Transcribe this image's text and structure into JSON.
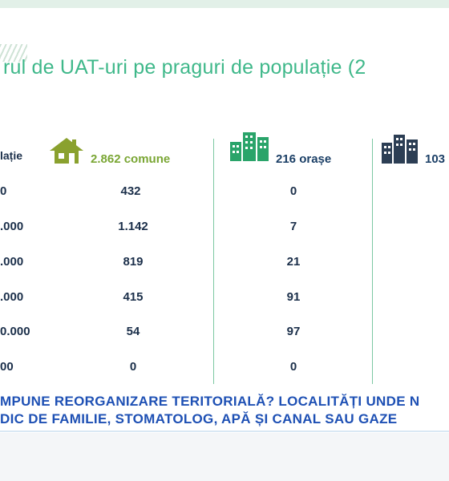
{
  "title": "rul de UAT-uri pe praguri de populație (2",
  "headers": {
    "col0": "lație",
    "col1": "2.862 comune",
    "col2": "216 orașe",
    "col3": "103"
  },
  "rows": [
    {
      "label": "0",
      "c1": "432",
      "c2": "0"
    },
    {
      "label": ".000",
      "c1": "1.142",
      "c2": "7"
    },
    {
      "label": ".000",
      "c1": "819",
      "c2": "21"
    },
    {
      "label": ".000",
      "c1": "415",
      "c2": "91"
    },
    {
      "label": "0.000",
      "c1": "54",
      "c2": "97"
    },
    {
      "label": "00",
      "c1": "0",
      "c2": "0"
    }
  ],
  "ticker": {
    "line1": "MPUNE REORGANIZARE TERITORIALĂ? LOCALITĂȚI UNDE N",
    "line2": "DIC DE FAMILIE, STOMATOLOG, APĂ ȘI CANAL SAU GAZE"
  },
  "icons": {
    "col1": "house-icon",
    "col2": "green-buildings-icon",
    "col3": "dark-buildings-icon"
  },
  "colors": {
    "title": "#3fb88a",
    "house": "#8aa12e",
    "green_building": "#2aa46a",
    "dark_building": "#2c3e54",
    "ticker_text": "#1e50b4"
  }
}
